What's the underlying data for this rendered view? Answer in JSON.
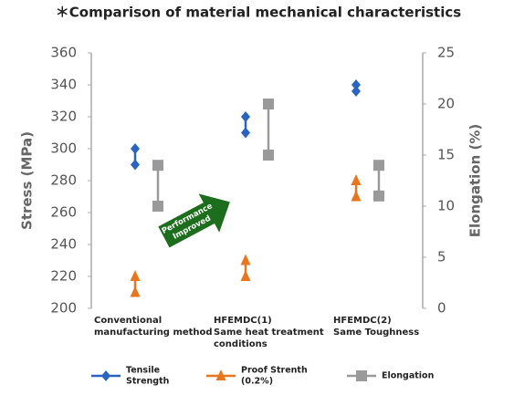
{
  "chart_data": {
    "type": "range-dot",
    "title": "＊Comparison of material mechanical characteristics",
    "y_label": "Stress (MPa)",
    "y2_label": "Elongation (%)",
    "categories": [
      [
        "Conventional",
        "manufacturing method"
      ],
      [
        "HFEMDC(1)",
        "Same heat treatment",
        "conditions"
      ],
      [
        "HFEMDC(2)",
        "Same Toughness"
      ]
    ],
    "ylim": [
      200,
      360
    ],
    "yticks": [
      200,
      220,
      240,
      260,
      280,
      300,
      320,
      340,
      360
    ],
    "y2lim": [
      0,
      25
    ],
    "y2ticks": [
      0,
      5,
      10,
      15,
      20,
      25
    ],
    "series": [
      {
        "name": [
          "Tensile",
          "Strength"
        ],
        "color": "#2864c0",
        "marker": "diamond",
        "low": [
          290,
          310,
          336
        ],
        "high": [
          300,
          320,
          340
        ]
      },
      {
        "name": [
          "Proof Strenth",
          "(0.2%)"
        ],
        "color": "#e8761e",
        "marker": "triangle",
        "low": [
          210,
          220,
          270
        ],
        "high": [
          220,
          230,
          280
        ]
      },
      {
        "name": [
          "Elongation"
        ],
        "color": "#9a9a9a",
        "marker": "square",
        "axis": "y2",
        "low": [
          10,
          15,
          11
        ],
        "high": [
          14,
          20,
          14
        ]
      }
    ],
    "annotation": [
      "Performance",
      "Improved"
    ]
  }
}
